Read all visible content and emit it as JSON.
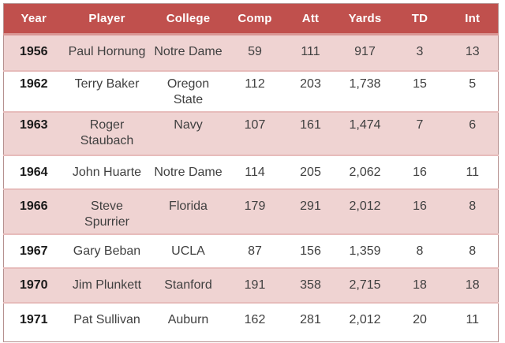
{
  "chart_data": {
    "type": "table",
    "columns": [
      "Year",
      "Player",
      "College",
      "Comp",
      "Att",
      "Yards",
      "TD",
      "Int"
    ],
    "rows": [
      [
        "1956",
        "Paul Hornung",
        "Notre Dame",
        "59",
        "111",
        "917",
        "3",
        "13"
      ],
      [
        "1962",
        "Terry Baker",
        "Oregon\nState",
        "112",
        "203",
        "1,738",
        "15",
        "5"
      ],
      [
        "1963",
        "Roger\nStaubach",
        "Navy",
        "107",
        "161",
        "1,474",
        "7",
        "6"
      ],
      [
        "1964",
        "John Huarte",
        "Notre Dame",
        "114",
        "205",
        "2,062",
        "16",
        "11"
      ],
      [
        "1966",
        "Steve Spurrier",
        "Florida",
        "179",
        "291",
        "2,012",
        "16",
        "8"
      ],
      [
        "1967",
        "Gary Beban",
        "UCLA",
        "87",
        "156",
        "1,359",
        "8",
        "8"
      ],
      [
        "1970",
        "Jim Plunkett",
        "Stanford",
        "191",
        "358",
        "2,715",
        "18",
        "18"
      ],
      [
        "1971",
        "Pat Sullivan",
        "Auburn",
        "162",
        "281",
        "2,012",
        "20",
        "11"
      ]
    ],
    "banded_rows": true,
    "legend_position": "none",
    "grid": "horizontal-borders-only"
  },
  "colors": {
    "header_bg": "#C0504D",
    "header_text": "#FFFFFF",
    "header_border": "#D99694",
    "band_row_bg": "#EFD3D2",
    "row_border": "#E7BCBB",
    "outer_border": "#B5908F",
    "body_text": "#404040",
    "year_text": "#1A1A1A"
  }
}
